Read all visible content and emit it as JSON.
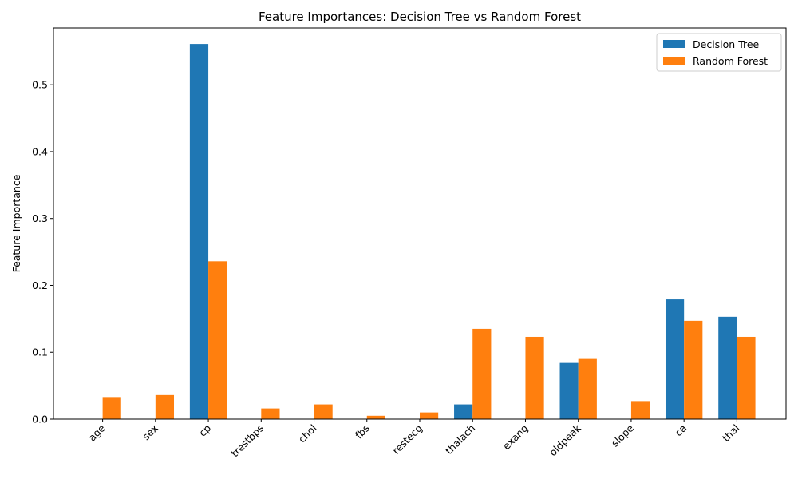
{
  "chart_data": {
    "type": "bar",
    "title": "Feature Importances: Decision Tree vs Random Forest",
    "xlabel": "",
    "ylabel": "Feature Importance",
    "categories": [
      "age",
      "sex",
      "cp",
      "trestbps",
      "chol",
      "fbs",
      "restecg",
      "thalach",
      "exang",
      "oldpeak",
      "slope",
      "ca",
      "thal"
    ],
    "series": [
      {
        "name": "Decision Tree",
        "color": "#1f77b4",
        "values": [
          0.0,
          0.0,
          0.561,
          0.0,
          0.0,
          0.0,
          0.0,
          0.022,
          0.0,
          0.084,
          0.0,
          0.179,
          0.153
        ]
      },
      {
        "name": "Random Forest",
        "color": "#ff7f0e",
        "values": [
          0.033,
          0.036,
          0.236,
          0.016,
          0.022,
          0.005,
          0.01,
          0.135,
          0.123,
          0.09,
          0.027,
          0.147,
          0.123
        ]
      }
    ],
    "ylim": [
      0,
      0.585
    ],
    "yticks": [
      0.0,
      0.1,
      0.2,
      0.3,
      0.4,
      0.5
    ],
    "ytick_labels": [
      "0.0",
      "0.1",
      "0.2",
      "0.3",
      "0.4",
      "0.5"
    ],
    "grid": false,
    "legend_position": "top-right"
  }
}
